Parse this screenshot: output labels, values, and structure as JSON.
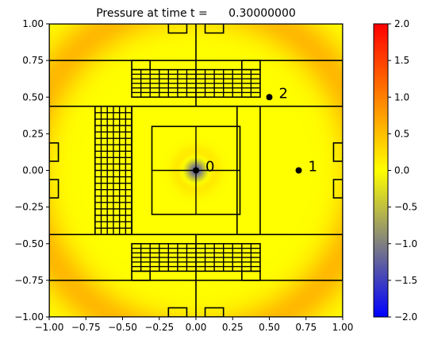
{
  "chart_data": {
    "type": "heatmap",
    "title": "Pressure at time t =",
    "title_value": "0.30000000",
    "xlim": [
      -1.0,
      1.0
    ],
    "ylim": [
      -1.0,
      1.0
    ],
    "x_ticks": [
      "−1.00",
      "−0.75",
      "−0.50",
      "−0.25",
      "0.00",
      "0.25",
      "0.50",
      "0.75",
      "1.00"
    ],
    "y_ticks": [
      "−1.00",
      "−0.75",
      "−0.50",
      "−0.25",
      "0.00",
      "0.25",
      "0.50",
      "0.75",
      "1.00"
    ],
    "x_tick_values": [
      -1.0,
      -0.75,
      -0.5,
      -0.25,
      0.0,
      0.25,
      0.5,
      0.75,
      1.0
    ],
    "y_tick_values": [
      -1.0,
      -0.75,
      -0.5,
      -0.25,
      0.0,
      0.25,
      0.5,
      0.75,
      1.0
    ],
    "colorbar": {
      "range": [
        -2.0,
        2.0
      ],
      "ticks": [
        "−2.0",
        "−1.5",
        "−1.0",
        "−0.5",
        "0.0",
        "0.5",
        "1.0",
        "1.5",
        "2.0"
      ],
      "tick_values": [
        -2.0,
        -1.5,
        -1.0,
        -0.5,
        0.0,
        0.5,
        1.0,
        1.5,
        2.0
      ],
      "colors": [
        "#0000ff",
        "#808080",
        "#ffff00",
        "#ff8000",
        "#ff0000"
      ]
    },
    "field": {
      "description_values": "radial pressure wave centered at origin",
      "center_value": -1.3,
      "ring_radius": 1.15,
      "ring_peak": 0.55
    },
    "gauges": [
      {
        "label": "0",
        "x": 0.0,
        "y": 0.0
      },
      {
        "label": "1",
        "x": 0.7,
        "y": 0.0
      },
      {
        "label": "2",
        "x": 0.5,
        "y": 0.5
      }
    ],
    "grid_patches": [
      {
        "x0": -1.0,
        "x1": 1.0,
        "y0": -1.0,
        "y1": 1.0,
        "nx": 1,
        "ny": 1
      },
      {
        "x0": -1.0,
        "x1": 1.0,
        "y0": 0.4375,
        "y1": 0.75,
        "nx": 1,
        "ny": 1
      },
      {
        "x0": -1.0,
        "x1": 1.0,
        "y0": -0.75,
        "y1": -0.4375,
        "nx": 1,
        "ny": 1
      },
      {
        "x0": -0.4375,
        "x1": 0.4375,
        "y0": -0.4375,
        "y1": 0.4375,
        "nx": 1,
        "ny": 1
      },
      {
        "x0": -0.3,
        "x1": 0.3,
        "y0": -0.3,
        "y1": 0.3,
        "nx": 2,
        "ny": 2
      },
      {
        "x0": -0.4375,
        "x1": 0.4375,
        "y0": 0.5,
        "y1": 0.6875,
        "nx": 14,
        "ny": 6
      },
      {
        "x0": -0.4375,
        "x1": 0.4375,
        "y0": -0.6875,
        "y1": -0.5,
        "nx": 14,
        "ny": 6
      },
      {
        "x0": -0.6875,
        "x1": -0.4375,
        "y0": -0.4375,
        "y1": 0.4375,
        "nx": 6,
        "ny": 20
      },
      {
        "x0": -0.4375,
        "x1": -0.3125,
        "y0": 0.6875,
        "y1": 0.75,
        "nx": 1,
        "ny": 1
      },
      {
        "x0": 0.3125,
        "x1": 0.4375,
        "y0": 0.6875,
        "y1": 0.75,
        "nx": 1,
        "ny": 1
      },
      {
        "x0": -0.4375,
        "x1": -0.3125,
        "y0": -0.75,
        "y1": -0.6875,
        "nx": 1,
        "ny": 1
      },
      {
        "x0": 0.3125,
        "x1": 0.4375,
        "y0": -0.75,
        "y1": -0.6875,
        "nx": 1,
        "ny": 1
      },
      {
        "x0": -0.1875,
        "x1": -0.0625,
        "y0": 0.9375,
        "y1": 1.0,
        "nx": 1,
        "ny": 1
      },
      {
        "x0": 0.0625,
        "x1": 0.1875,
        "y0": 0.9375,
        "y1": 1.0,
        "nx": 1,
        "ny": 1
      },
      {
        "x0": -0.1875,
        "x1": -0.0625,
        "y0": -1.0,
        "y1": -0.9375,
        "nx": 1,
        "ny": 1
      },
      {
        "x0": 0.0625,
        "x1": 0.1875,
        "y0": -1.0,
        "y1": -0.9375,
        "nx": 1,
        "ny": 1
      },
      {
        "x0": -1.0,
        "x1": -0.9375,
        "y0": 0.0625,
        "y1": 0.1875,
        "nx": 1,
        "ny": 1
      },
      {
        "x0": -1.0,
        "x1": -0.9375,
        "y0": -0.1875,
        "y1": -0.0625,
        "nx": 1,
        "ny": 1
      },
      {
        "x0": 0.9375,
        "x1": 1.0,
        "y0": 0.0625,
        "y1": 0.1875,
        "nx": 1,
        "ny": 1
      },
      {
        "x0": 0.9375,
        "x1": 1.0,
        "y0": -0.1875,
        "y1": -0.0625,
        "nx": 1,
        "ny": 1
      }
    ],
    "extra_lines": [
      {
        "x0": 0.0,
        "y0": 0.75,
        "x1": 0.0,
        "y1": 1.0
      },
      {
        "x0": 0.0,
        "y0": -1.0,
        "x1": 0.0,
        "y1": -0.75
      },
      {
        "x0": 0.0,
        "y0": 0.4375,
        "x1": 0.0,
        "y1": 0.75
      },
      {
        "x0": 0.0,
        "y0": -0.75,
        "x1": 0.0,
        "y1": -0.4375
      },
      {
        "x0": 0.28,
        "y0": -0.4375,
        "x1": 0.28,
        "y1": 0.4375
      }
    ]
  }
}
